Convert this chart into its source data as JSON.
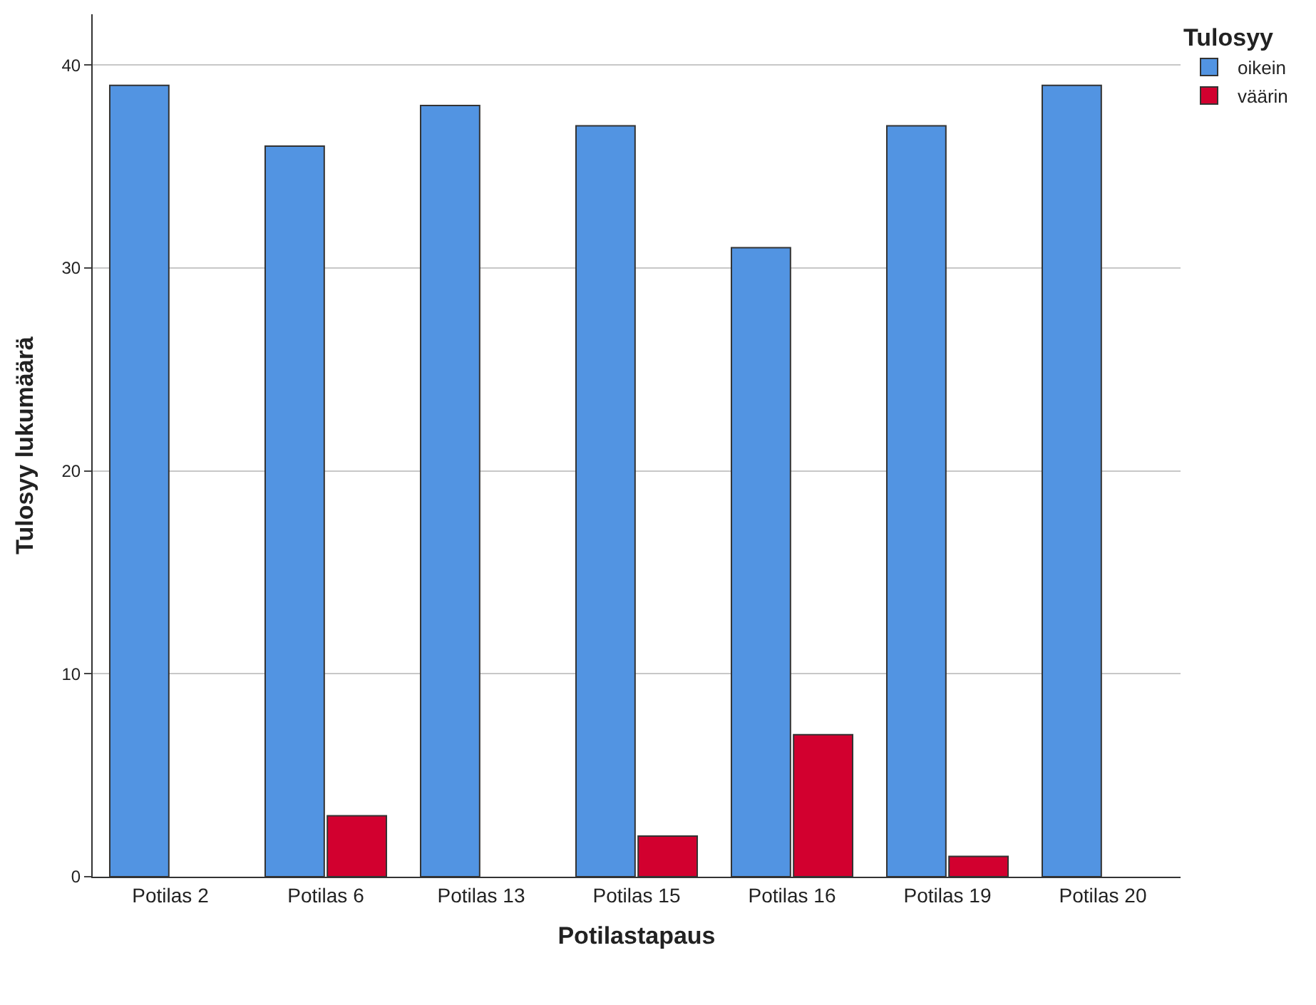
{
  "chart_data": {
    "type": "bar",
    "xlabel": "Potilastapaus",
    "ylabel": "Tulosyy lukumäärä",
    "legend_title": "Tulosyy",
    "categories": [
      "Potilas 2",
      "Potilas 6",
      "Potilas 13",
      "Potilas 15",
      "Potilas 16",
      "Potilas 19",
      "Potilas 20"
    ],
    "series": [
      {
        "name": "oikein",
        "color": "#5294e2",
        "values": [
          39,
          36,
          38,
          37,
          31,
          37,
          39
        ]
      },
      {
        "name": "väärin",
        "color": "#d2002f",
        "values": [
          null,
          3,
          null,
          2,
          7,
          1,
          null
        ]
      }
    ],
    "ylim": [
      0,
      42.5
    ],
    "yticks": [
      0,
      10,
      20,
      30,
      40
    ],
    "grid": "y",
    "legend": "top right"
  }
}
